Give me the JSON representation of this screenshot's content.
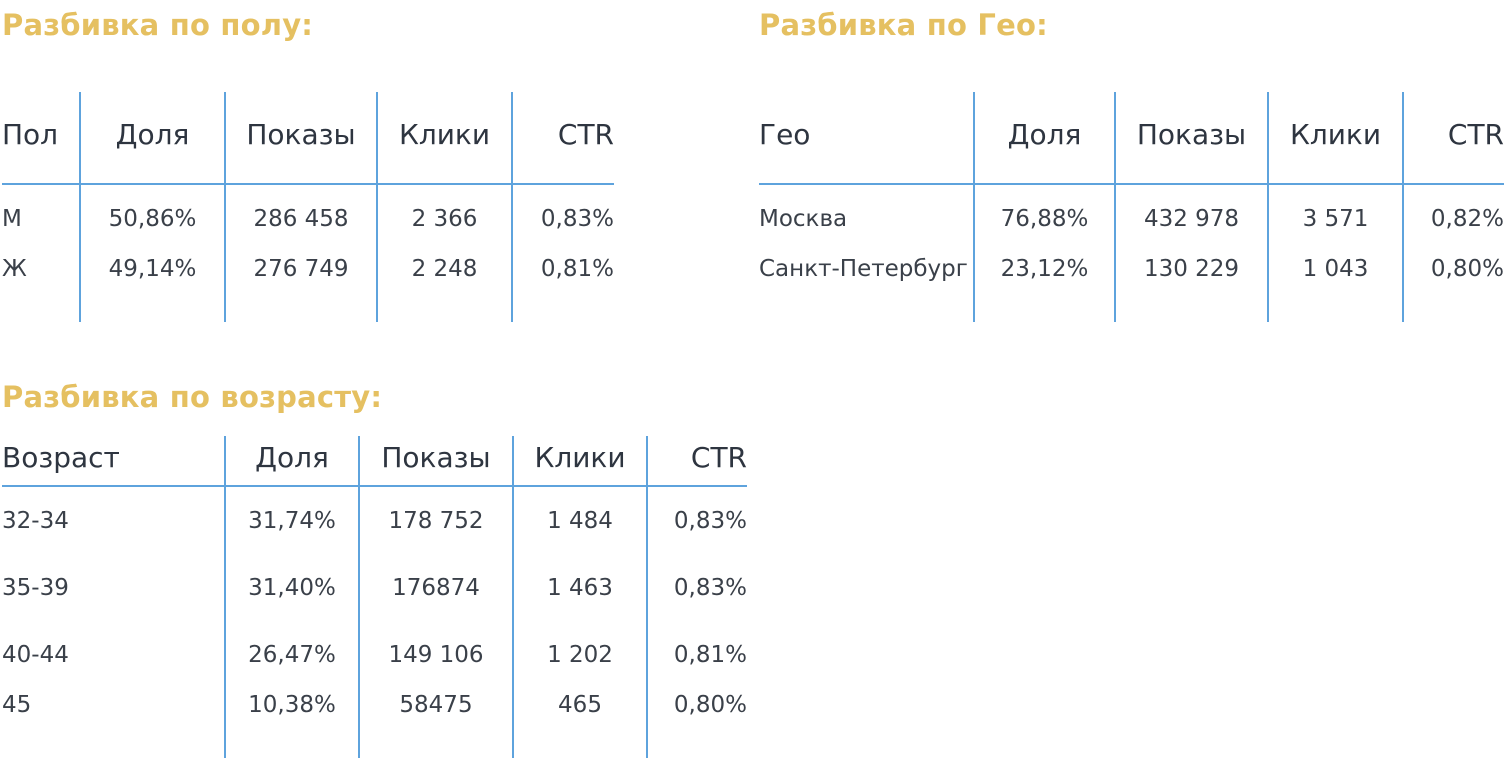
{
  "gender": {
    "title": "Разбивка по полу:",
    "headers": [
      "Пол",
      "Доля",
      "Показы",
      "Клики",
      "CTR"
    ],
    "rows": [
      [
        "М",
        "50,86%",
        "286 458",
        "2 366",
        "0,83%"
      ],
      [
        "Ж",
        "49,14%",
        "276 749",
        "2 248",
        "0,81%"
      ]
    ]
  },
  "geo": {
    "title": "Разбивка по Гео:",
    "headers": [
      "Гео",
      "Доля",
      "Показы",
      "Клики",
      "CTR"
    ],
    "rows": [
      [
        "Москва",
        "76,88%",
        "432 978",
        "3 571",
        "0,82%"
      ],
      [
        "Санкт-Петербург",
        "23,12%",
        "130 229",
        "1 043",
        "0,80%"
      ]
    ]
  },
  "age": {
    "title": "Разбивка по возрасту:",
    "headers": [
      "Возраст",
      "Доля",
      "Показы",
      "Клики",
      "CTR"
    ],
    "rows": [
      [
        "32-34",
        "31,74%",
        "178 752",
        "1 484",
        "0,83%"
      ],
      [
        "35-39",
        "31,40%",
        "176874",
        "1 463",
        "0,83%"
      ],
      [
        "40-44",
        "26,47%",
        "149 106",
        "1 202",
        "0,81%"
      ],
      [
        "45",
        "10,38%",
        "58475",
        "465",
        "0,80%"
      ]
    ]
  },
  "colors": {
    "title": "#e5c061",
    "divider": "#5ea3dd",
    "header_text": "#2e3540",
    "cell_text": "#3a4049"
  }
}
